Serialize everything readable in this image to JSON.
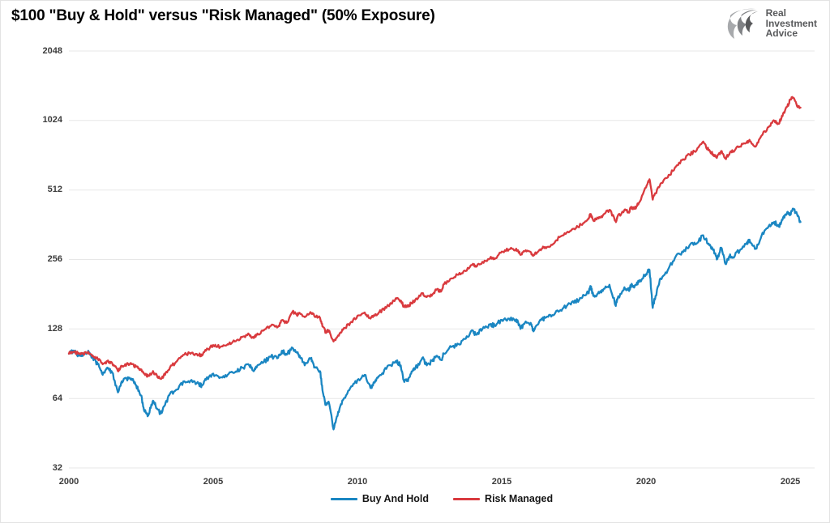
{
  "title": "$100 \"Buy & Hold\" versus \"Risk Managed\" (50% Exposure)",
  "logo": {
    "icon": "eagle-icon",
    "lines": [
      "Real",
      "Investment",
      "Advice"
    ]
  },
  "chart_data": {
    "type": "line",
    "title": "$100 \"Buy & Hold\" versus \"Risk Managed\" (50% Exposure)",
    "xlabel": "",
    "ylabel": "",
    "grid": "horizontal",
    "legend_position": "bottom-center",
    "start_value": 100,
    "y_axis": {
      "scale": "log2",
      "ticks": [
        2048,
        1024,
        512,
        256,
        128,
        64,
        32
      ],
      "range": [
        32,
        2048
      ]
    },
    "x_axis": {
      "ticks": [
        2000,
        2005,
        2010,
        2015,
        2020,
        2025
      ],
      "range": [
        2000,
        2025.84
      ]
    },
    "x": [
      2000.0,
      2000.17,
      2000.33,
      2000.5,
      2000.67,
      2000.83,
      2001.0,
      2001.17,
      2001.33,
      2001.5,
      2001.7,
      2001.83,
      2002.0,
      2002.17,
      2002.33,
      2002.5,
      2002.6,
      2002.75,
      2002.9,
      2003.0,
      2003.17,
      2003.33,
      2003.5,
      2003.75,
      2004.0,
      2004.25,
      2004.5,
      2004.6,
      2004.75,
      2005.0,
      2005.25,
      2005.5,
      2005.75,
      2006.0,
      2006.25,
      2006.4,
      2006.5,
      2006.75,
      2007.0,
      2007.25,
      2007.4,
      2007.55,
      2007.75,
      2007.9,
      2008.0,
      2008.17,
      2008.4,
      2008.5,
      2008.7,
      2008.8,
      2008.9,
      2009.0,
      2009.17,
      2009.33,
      2009.5,
      2009.75,
      2010.0,
      2010.25,
      2010.45,
      2010.6,
      2010.75,
      2011.0,
      2011.33,
      2011.5,
      2011.6,
      2011.75,
      2011.9,
      2012.0,
      2012.25,
      2012.4,
      2012.6,
      2012.75,
      2012.9,
      2013.0,
      2013.25,
      2013.5,
      2013.75,
      2014.0,
      2014.1,
      2014.33,
      2014.6,
      2014.75,
      2015.0,
      2015.25,
      2015.5,
      2015.65,
      2015.8,
      2016.0,
      2016.1,
      2016.33,
      2016.5,
      2016.75,
      2017.0,
      2017.25,
      2017.5,
      2017.75,
      2018.0,
      2018.08,
      2018.17,
      2018.33,
      2018.5,
      2018.73,
      2018.95,
      2019.0,
      2019.25,
      2019.4,
      2019.5,
      2019.6,
      2019.75,
      2020.0,
      2020.12,
      2020.23,
      2020.33,
      2020.5,
      2020.75,
      2021.0,
      2021.25,
      2021.5,
      2021.75,
      2021.98,
      2022.17,
      2022.33,
      2022.45,
      2022.6,
      2022.75,
      2022.9,
      2023.0,
      2023.25,
      2023.5,
      2023.6,
      2023.8,
      2024.0,
      2024.25,
      2024.45,
      2024.6,
      2024.75,
      2024.9,
      2025.0,
      2025.1,
      2025.25,
      2025.35
    ],
    "series": [
      {
        "id": "buy-and-hold",
        "name": "Buy And Hold",
        "color": "#1A86C2",
        "noise_pct": 2.2,
        "values": [
          100,
          103,
          99,
          99,
          103,
          96,
          90,
          81,
          87,
          83,
          68,
          76,
          78,
          78,
          73,
          66,
          57,
          54,
          62,
          60,
          55,
          60,
          67,
          70,
          76,
          77,
          74,
          73,
          77,
          82,
          79,
          81,
          83,
          87,
          89,
          84,
          87,
          92,
          97,
          96,
          103,
          99,
          106,
          101,
          98,
          89,
          96,
          87,
          84,
          68,
          60,
          62,
          47,
          56,
          63,
          71,
          77,
          81,
          71,
          75,
          80,
          86,
          93,
          89,
          77,
          76,
          84,
          86,
          96,
          89,
          93,
          98,
          94,
          100,
          107,
          110,
          116,
          126,
          121,
          128,
          134,
          132,
          140,
          142,
          141,
          128,
          136,
          136,
          125,
          140,
          143,
          147,
          153,
          161,
          166,
          174,
          184,
          196,
          178,
          182,
          187,
          199,
          161,
          171,
          194,
          188,
          201,
          195,
          204,
          221,
          231,
          158,
          178,
          212,
          230,
          260,
          277,
          294,
          300,
          326,
          300,
          281,
          256,
          288,
          245,
          265,
          262,
          281,
          304,
          306,
          285,
          324,
          357,
          372,
          355,
          390,
          412,
          404,
          425,
          395,
          372
        ]
      },
      {
        "id": "risk-managed",
        "name": "Risk Managed",
        "color": "#D93A3E",
        "noise_pct": 1.6,
        "values": [
          100,
          102,
          100,
          100,
          102,
          98,
          95,
          90,
          93,
          91,
          84,
          88,
          90,
          90,
          88,
          85,
          82,
          80,
          83,
          82,
          78,
          81,
          87,
          93,
          99,
          101,
          99,
          98,
          103,
          109,
          107,
          110,
          113,
          118,
          121,
          117,
          120,
          126,
          132,
          131,
          140,
          136,
          152,
          147,
          150,
          144,
          150,
          146,
          143,
          131,
          124,
          126,
          113,
          120,
          127,
          136,
          146,
          151,
          142,
          146,
          151,
          158,
          174,
          170,
          161,
          160,
          167,
          171,
          183,
          176,
          181,
          190,
          186,
          200,
          212,
          220,
          228,
          245,
          238,
          250,
          260,
          257,
          277,
          283,
          285,
          268,
          278,
          276,
          266,
          283,
          290,
          296,
          320,
          335,
          348,
          362,
          385,
          403,
          378,
          388,
          397,
          420,
          375,
          390,
          420,
          412,
          432,
          424,
          450,
          525,
          570,
          465,
          495,
          545,
          580,
          640,
          690,
          730,
          760,
          830,
          760,
          730,
          705,
          755,
          700,
          740,
          755,
          790,
          830,
          835,
          790,
          880,
          960,
          1020,
          990,
          1100,
          1180,
          1265,
          1285,
          1170,
          1165
        ]
      }
    ],
    "noise_subdivisions": 7
  }
}
